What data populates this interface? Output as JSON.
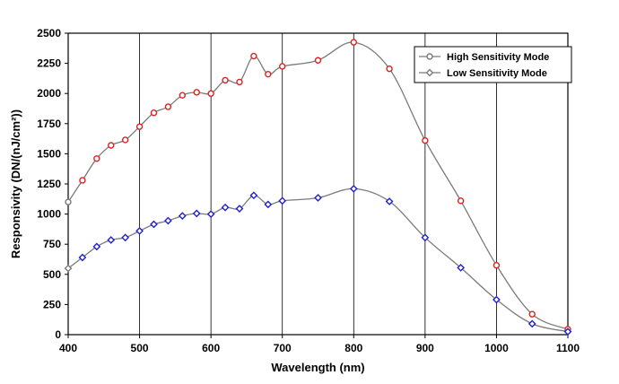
{
  "chart_data": {
    "type": "line",
    "xlabel": "Wavelength (nm)",
    "ylabel": "Responsivity (DN/(nJ/cm²))",
    "xlim": [
      400,
      1100
    ],
    "ylim": [
      0,
      2500
    ],
    "x_ticks": [
      "400",
      "500",
      "600",
      "700",
      "800",
      "900",
      "1000",
      "1100"
    ],
    "y_ticks": [
      "0",
      "250",
      "500",
      "750",
      "1000",
      "1250",
      "1500",
      "1750",
      "2000",
      "2250",
      "2500"
    ],
    "grid": "vertical",
    "legend_position": "top-right",
    "series": [
      {
        "name": "High Sensitivity Mode",
        "line_color": "#7a7a7a",
        "marker_color": "#e02020",
        "marker": "circle",
        "points": [
          [
            400,
            1100
          ],
          [
            420,
            1280
          ],
          [
            440,
            1460
          ],
          [
            460,
            1570
          ],
          [
            480,
            1615
          ],
          [
            500,
            1725
          ],
          [
            520,
            1840
          ],
          [
            540,
            1890
          ],
          [
            560,
            1985
          ],
          [
            580,
            2010
          ],
          [
            600,
            2000
          ],
          [
            620,
            2110
          ],
          [
            640,
            2095
          ],
          [
            660,
            2310
          ],
          [
            680,
            2160
          ],
          [
            700,
            2225
          ],
          [
            750,
            2275
          ],
          [
            800,
            2425
          ],
          [
            850,
            2205
          ],
          [
            900,
            1610
          ],
          [
            950,
            1110
          ],
          [
            1000,
            575
          ],
          [
            1050,
            170
          ],
          [
            1100,
            45
          ]
        ]
      },
      {
        "name": "Low Sensitivity Mode",
        "line_color": "#7a7a7a",
        "marker_color": "#2020d0",
        "marker": "diamond",
        "points": [
          [
            400,
            550
          ],
          [
            420,
            640
          ],
          [
            440,
            730
          ],
          [
            460,
            785
          ],
          [
            480,
            805
          ],
          [
            500,
            860
          ],
          [
            520,
            915
          ],
          [
            540,
            945
          ],
          [
            560,
            985
          ],
          [
            580,
            1005
          ],
          [
            600,
            1000
          ],
          [
            620,
            1055
          ],
          [
            640,
            1045
          ],
          [
            660,
            1155
          ],
          [
            680,
            1080
          ],
          [
            700,
            1110
          ],
          [
            750,
            1135
          ],
          [
            800,
            1210
          ],
          [
            850,
            1105
          ],
          [
            900,
            805
          ],
          [
            950,
            555
          ],
          [
            1000,
            290
          ],
          [
            1050,
            90
          ],
          [
            1100,
            25
          ]
        ]
      }
    ]
  }
}
